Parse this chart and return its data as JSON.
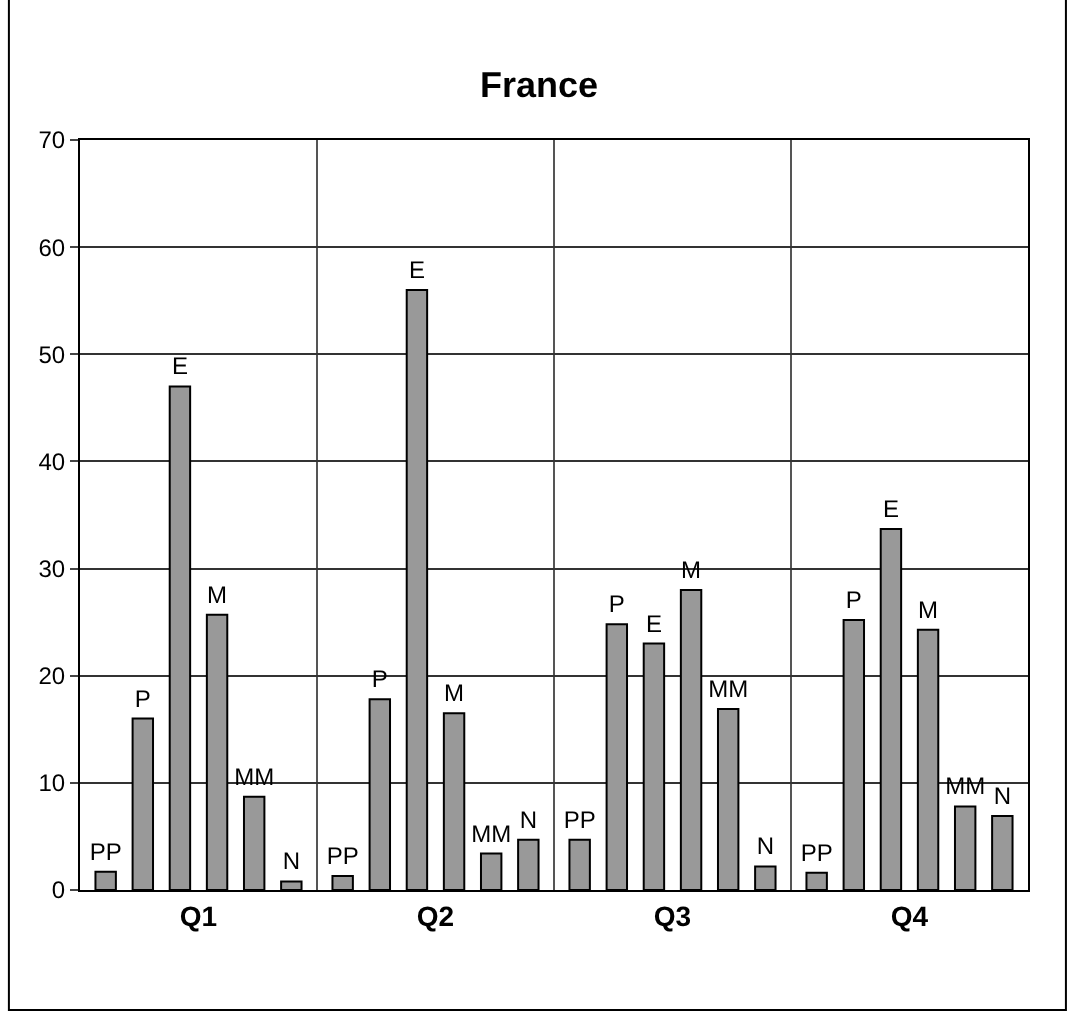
{
  "chart_data": {
    "type": "bar",
    "title": "France",
    "categories": [
      "Q1",
      "Q2",
      "Q3",
      "Q4"
    ],
    "series": [
      {
        "name": "PP",
        "color": "#999999",
        "values": [
          1.7,
          1.3,
          4.7,
          1.6
        ]
      },
      {
        "name": "P",
        "color": "#999999",
        "values": [
          16,
          17.8,
          24.8,
          25.2
        ]
      },
      {
        "name": "E",
        "color": "#999999",
        "values": [
          47,
          56,
          23,
          33.7
        ]
      },
      {
        "name": "M",
        "color": "#999999",
        "values": [
          25.7,
          16.5,
          28,
          24.3
        ]
      },
      {
        "name": "MM",
        "color": "#999999",
        "values": [
          8.7,
          3.4,
          16.9,
          7.8
        ]
      },
      {
        "name": "N",
        "color": "#999999",
        "values": [
          0.8,
          4.7,
          2.2,
          6.9
        ]
      }
    ],
    "ylim": [
      0,
      70
    ],
    "yticks": [
      0,
      10,
      20,
      30,
      40,
      50,
      60,
      70
    ],
    "grid": true,
    "legend": false
  }
}
